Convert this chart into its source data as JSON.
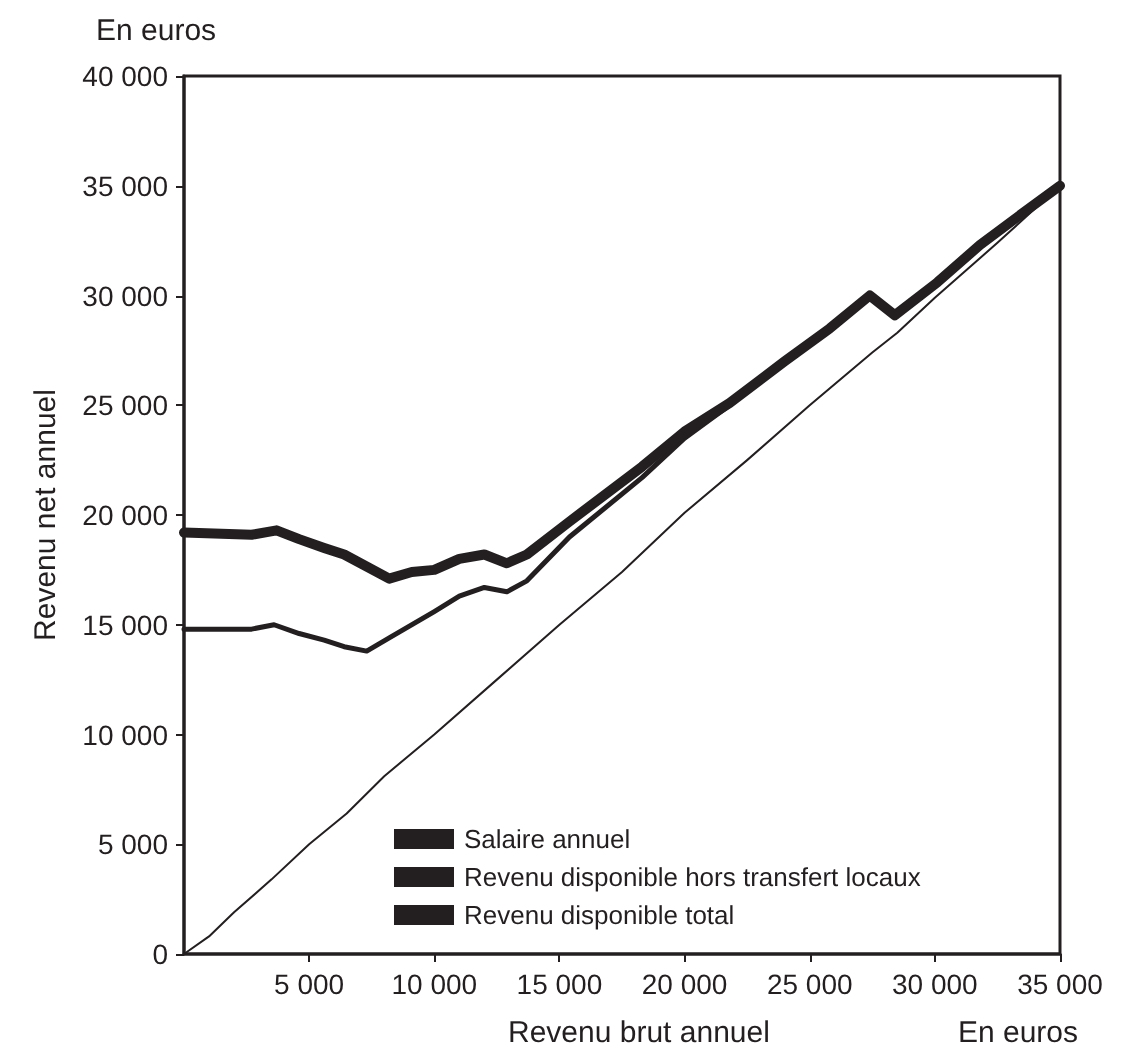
{
  "chart_data": {
    "type": "line",
    "xlabel": "Revenu brut annuel",
    "ylabel": "Revenu net annuel",
    "annotations": [
      "En euros",
      "En euros"
    ],
    "xlim": [
      0,
      35000
    ],
    "ylim": [
      0,
      40000
    ],
    "xticks": [
      {
        "value": 5000,
        "label": "5 000"
      },
      {
        "value": 10000,
        "label": "10 000"
      },
      {
        "value": 15000,
        "label": "15 000"
      },
      {
        "value": 20000,
        "label": "20 000"
      },
      {
        "value": 25000,
        "label": "25 000"
      },
      {
        "value": 30000,
        "label": "30 000"
      },
      {
        "value": 35000,
        "label": "35 000"
      }
    ],
    "yticks": [
      0,
      {
        "value": 5000,
        "label": "5 000"
      },
      {
        "value": 10000,
        "label": "10 000"
      },
      {
        "value": 15000,
        "label": "15 000"
      },
      {
        "value": 20000,
        "label": "20 000"
      },
      {
        "value": 25000,
        "label": "25 000"
      },
      {
        "value": 30000,
        "label": "30 000"
      },
      {
        "value": 35000,
        "label": "35 000"
      },
      {
        "value": 40000,
        "label": "40 000"
      }
    ],
    "grid": false,
    "legend": "bottom right",
    "marker": "none",
    "line_style": "solid",
    "series": [
      {
        "name": "Salaire annuel",
        "color": "#231f20",
        "x": [
          0,
          1000,
          2000,
          3500,
          5000,
          6500,
          8000,
          10000,
          12500,
          15000,
          17500,
          20000,
          22500,
          25000,
          27500,
          28500,
          30000,
          32500,
          35000
        ],
        "values": [
          0,
          800,
          1900,
          3400,
          5000,
          6400,
          8100,
          10000,
          12500,
          15000,
          17400,
          20100,
          22500,
          25000,
          27400,
          28300,
          29900,
          32400,
          35000
        ]
      },
      {
        "name": "Revenu disponible hors transfert locaux",
        "color": "#231f20",
        "x": [
          0,
          2700,
          3600,
          4600,
          5600,
          6400,
          7300,
          8200,
          10000,
          11000,
          12000,
          12900,
          13700,
          15400,
          18300,
          20000,
          21800,
          24000,
          25800,
          27400,
          28400,
          30100,
          31800,
          33800,
          35000
        ],
        "values": [
          14800,
          14800,
          15000,
          14600,
          14300,
          14000,
          13800,
          14400,
          15600,
          16300,
          16700,
          16500,
          17000,
          19000,
          21700,
          23500,
          25000,
          27000,
          28500,
          30000,
          29100,
          30600,
          32200,
          34000,
          35000
        ]
      },
      {
        "name": "Revenu disponible total",
        "color": "#231f20",
        "x": [
          0,
          2700,
          3700,
          4600,
          5600,
          6400,
          8200,
          9100,
          10000,
          11000,
          12000,
          12900,
          13700,
          15400,
          18300,
          20000,
          21800,
          24000,
          25800,
          27400,
          28400,
          30100,
          31800,
          33800,
          35000
        ],
        "values": [
          19200,
          19100,
          19300,
          18900,
          18500,
          18200,
          17100,
          17400,
          17500,
          18000,
          18200,
          17800,
          18200,
          19700,
          22200,
          23800,
          25100,
          27000,
          28500,
          30000,
          29100,
          30600,
          32300,
          34000,
          35000
        ]
      }
    ]
  }
}
